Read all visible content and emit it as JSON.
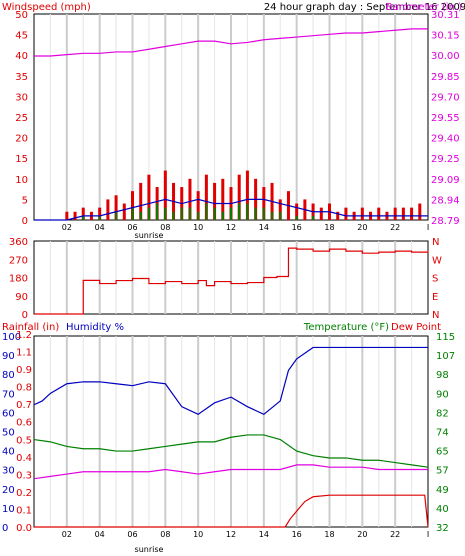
{
  "colors": {
    "red": "#e00000",
    "magenta": "#e000e0",
    "blue": "#0000c0",
    "green": "#008000",
    "grid": "#cccccc",
    "frame": "#000000"
  },
  "chart_data": [
    {
      "type": "line",
      "title": "24 hour graph day : September 16 2009",
      "ylabel_left": "Windspeed (mph)",
      "ylabel_right": "Barometer (in.)",
      "left_ticks": [
        "50",
        "45",
        "40",
        "35",
        "30",
        "25",
        "20",
        "15",
        "10",
        "5",
        "0"
      ],
      "right_ticks": [
        "30.31",
        "30.15",
        "30.00",
        "29.85",
        "29.70",
        "29.55",
        "29.40",
        "29.25",
        "29.09",
        "28.94",
        "28.79"
      ],
      "x_ticks": [
        "02",
        "04",
        "06",
        "08",
        "10",
        "12",
        "14",
        "16",
        "18",
        "20",
        "22",
        "I"
      ],
      "x_note": "sunrise",
      "ylim_left": [
        0,
        50
      ],
      "ylim_right": [
        28.79,
        30.31
      ],
      "xlim": [
        0,
        24
      ],
      "grid": true,
      "series": [
        {
          "name": "Barometer (in.)",
          "axis": "right",
          "color": "#e000e0",
          "x": [
            0,
            1,
            2,
            3,
            4,
            5,
            6,
            7,
            8,
            9,
            10,
            11,
            12,
            13,
            14,
            15,
            16,
            17,
            18,
            19,
            20,
            21,
            22,
            23,
            24
          ],
          "y": [
            30.0,
            30.0,
            30.01,
            30.02,
            30.02,
            30.03,
            30.03,
            30.05,
            30.07,
            30.09,
            30.11,
            30.11,
            30.09,
            30.1,
            30.12,
            30.13,
            30.14,
            30.15,
            30.16,
            30.17,
            30.17,
            30.18,
            30.19,
            30.2,
            30.2
          ]
        },
        {
          "name": "Wind gust",
          "axis": "left",
          "color": "#e00000",
          "style": "bars",
          "x": [
            2.0,
            2.5,
            3.0,
            3.5,
            4.0,
            4.5,
            5.0,
            5.5,
            6.0,
            6.5,
            7.0,
            7.5,
            8.0,
            8.5,
            9.0,
            9.5,
            10.0,
            10.5,
            11.0,
            11.5,
            12.0,
            12.5,
            13.0,
            13.5,
            14.0,
            14.5,
            15.0,
            15.5,
            16.0,
            16.5,
            17.0,
            17.5,
            18.0,
            18.5,
            19.0,
            19.5,
            20.0,
            20.5,
            21.0,
            21.5,
            22.0,
            22.5,
            23.0,
            23.5
          ],
          "y": [
            2,
            2,
            3,
            2,
            3,
            5,
            6,
            4,
            7,
            9,
            11,
            8,
            12,
            9,
            8,
            10,
            7,
            11,
            9,
            10,
            8,
            11,
            12,
            10,
            8,
            9,
            5,
            7,
            4,
            5,
            4,
            3,
            4,
            2,
            3,
            2,
            3,
            2,
            3,
            2,
            3,
            3,
            3,
            4
          ]
        },
        {
          "name": "Wind average",
          "axis": "left",
          "color": "#0000c0",
          "x": [
            0,
            1,
            2,
            3,
            4,
            5,
            6,
            7,
            8,
            9,
            10,
            11,
            12,
            13,
            14,
            15,
            16,
            17,
            18,
            19,
            20,
            21,
            22,
            23,
            24
          ],
          "y": [
            0,
            0,
            0,
            1,
            1,
            2,
            3,
            4,
            5,
            4,
            5,
            4,
            4,
            5,
            5,
            4,
            3,
            2,
            2,
            1,
            1,
            1,
            1,
            1,
            1
          ]
        },
        {
          "name": "Wind speed",
          "axis": "left",
          "color": "#008000",
          "style": "bars",
          "x": [
            3.0,
            4.0,
            5.0,
            6.0,
            6.5,
            7.0,
            7.5,
            8.0,
            8.5,
            9.0,
            9.5,
            10.0,
            10.5,
            11.0,
            11.5,
            12.0,
            12.5,
            13.0,
            13.5,
            14.0,
            14.5,
            15.0,
            16.0,
            17.0
          ],
          "y": [
            1,
            1,
            2,
            3,
            2,
            3,
            4,
            3,
            2,
            3,
            3,
            2,
            4,
            3,
            2,
            3,
            4,
            4,
            3,
            3,
            2,
            2,
            1,
            1
          ]
        }
      ]
    },
    {
      "type": "line",
      "left_ticks": [
        "360",
        "270",
        "180",
        "90",
        "0"
      ],
      "right_ticks": [
        "N",
        "W",
        "S",
        "E",
        "N"
      ],
      "ylim": [
        0,
        360
      ],
      "xlim": [
        0,
        24
      ],
      "grid": true,
      "series": [
        {
          "name": "Wind direction",
          "color": "#e00000",
          "x": [
            0,
            1.0,
            2.2,
            3,
            4,
            5,
            6,
            7,
            8,
            9,
            10,
            10.5,
            11,
            12,
            13,
            14,
            14.8,
            15.5,
            16,
            17,
            18,
            19,
            20,
            21,
            22,
            23,
            24
          ],
          "y": [
            0,
            0,
            0,
            166,
            150,
            165,
            175,
            150,
            160,
            150,
            165,
            140,
            160,
            150,
            155,
            180,
            185,
            325,
            320,
            310,
            320,
            310,
            300,
            305,
            310,
            305,
            315
          ]
        }
      ]
    },
    {
      "type": "line",
      "ylabel_left_1": "Rainfall (in)",
      "ylabel_left_2": "Humidity %",
      "ylabel_right_1": "Temperature (°F)",
      "ylabel_right_2": "Dew Point",
      "rain_ticks": [
        "1.2",
        "1.1",
        "0.9",
        "0.8",
        "0.7",
        "0.6",
        "0.5",
        "0.4",
        "0.3",
        "0.2",
        "0.1",
        "0.0"
      ],
      "humidity_ticks": [
        "100",
        "90",
        "80",
        "70",
        "60",
        "50",
        "40",
        "30",
        "20",
        "10",
        "0"
      ],
      "temp_ticks": [
        "115",
        "107",
        "98",
        "90",
        "82",
        "74",
        "65",
        "57",
        "49",
        "40",
        "32"
      ],
      "x_ticks": [
        "02",
        "04",
        "06",
        "08",
        "10",
        "12",
        "14",
        "16",
        "18",
        "20",
        "22",
        "I"
      ],
      "x_note": "sunrise",
      "ylim_humidity": [
        0,
        100
      ],
      "ylim_temp": [
        32,
        115
      ],
      "ylim_rain": [
        0,
        1.2
      ],
      "xlim": [
        0,
        24
      ],
      "grid": true,
      "series": [
        {
          "name": "Humidity %",
          "axis": "humidity",
          "color": "#0000c0",
          "x": [
            0,
            0.5,
            1,
            2,
            3,
            4,
            5,
            6,
            7,
            8,
            9,
            10,
            11,
            12,
            13,
            14,
            15,
            15.5,
            16,
            17,
            18,
            19,
            20,
            21,
            22,
            23,
            24
          ],
          "y": [
            64,
            66,
            70,
            75,
            76,
            76,
            75,
            74,
            76,
            75,
            63,
            59,
            65,
            68,
            63,
            59,
            66,
            82,
            88,
            94,
            94,
            94,
            94,
            94,
            94,
            94,
            94
          ]
        },
        {
          "name": "Temperature (°F)",
          "axis": "temp",
          "color": "#008000",
          "x": [
            0,
            1,
            2,
            3,
            4,
            5,
            6,
            7,
            8,
            9,
            10,
            11,
            12,
            13,
            14,
            15,
            16,
            17,
            18,
            19,
            20,
            21,
            22,
            23,
            24
          ],
          "y": [
            70,
            69,
            67,
            66,
            66,
            65,
            65,
            66,
            67,
            68,
            69,
            69,
            71,
            72,
            72,
            70,
            65,
            63,
            62,
            62,
            61,
            61,
            60,
            59,
            58
          ]
        },
        {
          "name": "Dew Point",
          "axis": "temp",
          "color": "#e000e0",
          "x": [
            0,
            1,
            2,
            3,
            4,
            5,
            6,
            7,
            8,
            9,
            10,
            11,
            12,
            13,
            14,
            15,
            16,
            17,
            18,
            19,
            20,
            21,
            22,
            23,
            24
          ],
          "y": [
            53,
            54,
            55,
            56,
            56,
            56,
            56,
            56,
            57,
            56,
            55,
            56,
            57,
            57,
            57,
            57,
            59,
            59,
            58,
            58,
            58,
            57,
            57,
            57,
            57
          ]
        },
        {
          "name": "Rainfall (in)",
          "axis": "rain",
          "color": "#e00000",
          "x": [
            0,
            2,
            4,
            6,
            8,
            10,
            12,
            14,
            15.3,
            15.6,
            16,
            16.5,
            17,
            18,
            19,
            20,
            21,
            22,
            23,
            23.8,
            24
          ],
          "y": [
            0,
            0,
            0,
            0,
            0,
            0,
            0,
            0,
            0,
            0.05,
            0.1,
            0.16,
            0.19,
            0.2,
            0.2,
            0.2,
            0.2,
            0.2,
            0.2,
            0.2,
            0
          ]
        }
      ]
    }
  ]
}
